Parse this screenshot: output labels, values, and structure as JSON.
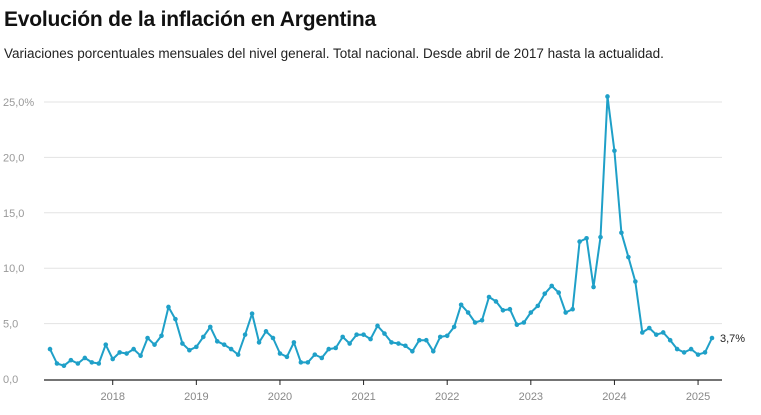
{
  "chart_data": {
    "type": "line",
    "title": "Evolución de la inflación en Argentina",
    "subtitle": "Variaciones porcentuales mensuales del nivel general. Total nacional. Desde abril de 2017 hasta la actualidad.",
    "xlabel": "",
    "ylabel": "",
    "start": "2017-04",
    "end": "2025-03",
    "ylim": [
      0,
      25
    ],
    "grid": true,
    "y_ticks": [
      {
        "value": 0,
        "label": "0,0"
      },
      {
        "value": 5,
        "label": "5,0"
      },
      {
        "value": 10,
        "label": "10,0"
      },
      {
        "value": 15,
        "label": "15,0"
      },
      {
        "value": 20,
        "label": "20,0"
      },
      {
        "value": 25,
        "label": "25,0%"
      }
    ],
    "x_ticks": [
      "2018",
      "2019",
      "2020",
      "2021",
      "2022",
      "2023",
      "2024",
      "2025"
    ],
    "line_color": "#1fa0c8",
    "last_label": "3,7%",
    "values": [
      2.7,
      1.4,
      1.2,
      1.7,
      1.4,
      1.9,
      1.5,
      1.4,
      3.1,
      1.8,
      2.4,
      2.3,
      2.7,
      2.1,
      3.7,
      3.1,
      3.9,
      6.5,
      5.4,
      3.2,
      2.6,
      2.9,
      3.8,
      4.7,
      3.4,
      3.1,
      2.7,
      2.2,
      4.0,
      5.9,
      3.3,
      4.3,
      3.7,
      2.3,
      2.0,
      3.3,
      1.5,
      1.5,
      2.2,
      1.9,
      2.7,
      2.8,
      3.8,
      3.2,
      4.0,
      4.0,
      3.6,
      4.8,
      4.1,
      3.3,
      3.2,
      3.0,
      2.5,
      3.5,
      3.5,
      2.5,
      3.8,
      3.9,
      4.7,
      6.7,
      6.0,
      5.1,
      5.3,
      7.4,
      7.0,
      6.2,
      6.3,
      4.9,
      5.1,
      6.0,
      6.6,
      7.7,
      8.4,
      7.8,
      6.0,
      6.3,
      12.4,
      12.7,
      8.3,
      12.8,
      25.5,
      20.6,
      13.2,
      11.0,
      8.8,
      4.2,
      4.6,
      4.0,
      4.2,
      3.5,
      2.7,
      2.4,
      2.7,
      2.2,
      2.4,
      3.7
    ]
  }
}
